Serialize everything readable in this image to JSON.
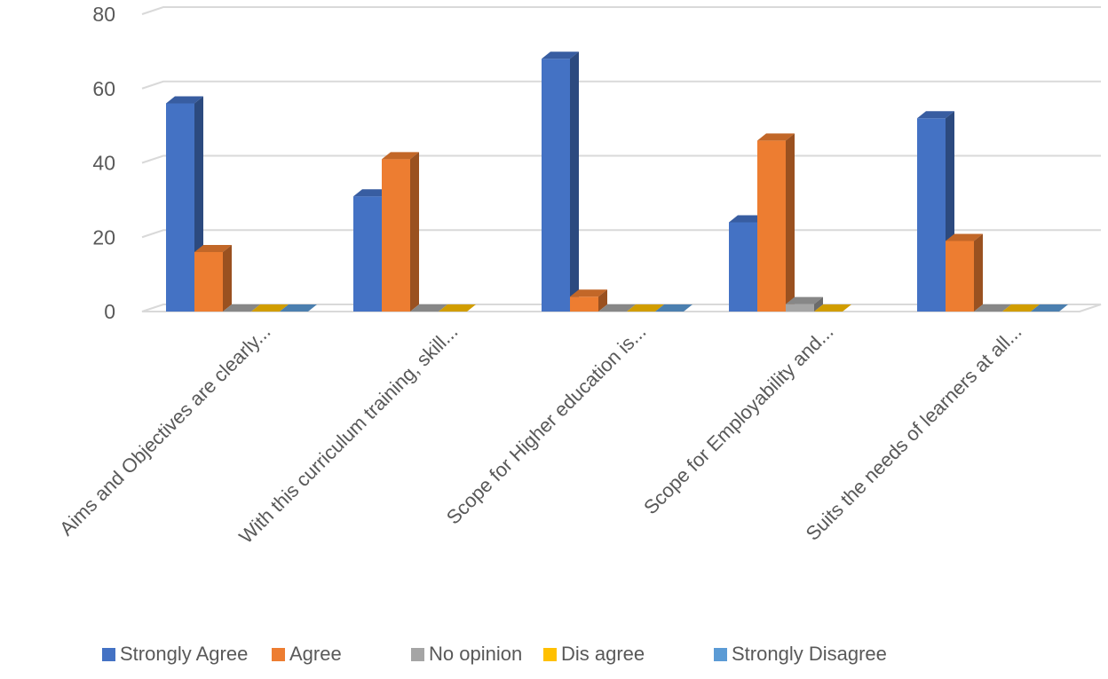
{
  "chart_data": {
    "type": "bar",
    "title": "",
    "xlabel": "",
    "ylabel": "",
    "ylim": [
      0,
      80
    ],
    "yticks": [
      0,
      20,
      40,
      60,
      80
    ],
    "grid": true,
    "legend_position": "bottom",
    "categories": [
      "Aims and Objectives are clearly...",
      "With this curriculum training, skill...",
      "Scope for Higher education is...",
      "Scope for Employability and...",
      "Suits the needs of learners at all..."
    ],
    "series": [
      {
        "name": "Strongly Agree",
        "color": "#4472C4",
        "values": [
          56,
          31,
          68,
          24,
          52
        ]
      },
      {
        "name": "Agree",
        "color": "#ED7D31",
        "values": [
          16,
          41,
          4,
          46,
          19
        ]
      },
      {
        "name": "No opinion",
        "color": "#A5A5A5",
        "values": [
          0,
          0,
          0,
          2,
          0
        ]
      },
      {
        "name": "Dis agree",
        "color": "#FFC000",
        "values": [
          0,
          0,
          0,
          0,
          0
        ]
      },
      {
        "name": "Strongly Disagree",
        "color": "#5B9BD5",
        "values": [
          0,
          null,
          0,
          null,
          0
        ]
      }
    ]
  }
}
